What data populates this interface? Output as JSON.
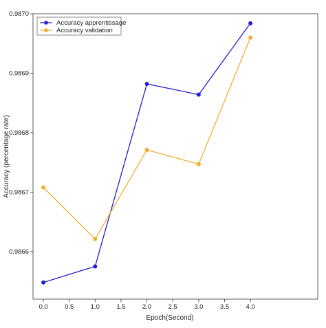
{
  "chart_data": {
    "type": "line",
    "title": "",
    "xlabel": "Epoch(Second)",
    "ylabel": "Accuracy (percentage rate)",
    "xlim": [
      -0.2,
      5.3
    ],
    "ylim": [
      0.98652,
      0.987
    ],
    "xticks": [
      0.0,
      0.5,
      1.0,
      1.5,
      2.0,
      2.5,
      3.0,
      3.5,
      4.0
    ],
    "xtick_labels": [
      "0.0",
      "0.5",
      "1.0",
      "1.5",
      "2.0",
      "2.5",
      "3.0",
      "3.5",
      "4.0"
    ],
    "yticks": [
      0.9866,
      0.9867,
      0.9868,
      0.9869,
      0.987
    ],
    "ytick_labels": [
      "0.9866",
      "0.9867",
      "0.9868",
      "0.9869",
      "0.9870"
    ],
    "grid": false,
    "legend_position": "top-left",
    "x": [
      0.0,
      1.0,
      2.0,
      3.0,
      4.0
    ],
    "series": [
      {
        "name": "Accuracy apprentissage",
        "color": "#1f1fcf",
        "values": [
          0.986548,
          0.986575,
          0.986882,
          0.986864,
          0.986984
        ]
      },
      {
        "name": "Accuracy validation",
        "color": "#f5ab2c",
        "values": [
          0.986708,
          0.986621,
          0.986771,
          0.986747,
          0.98696
        ]
      }
    ]
  }
}
